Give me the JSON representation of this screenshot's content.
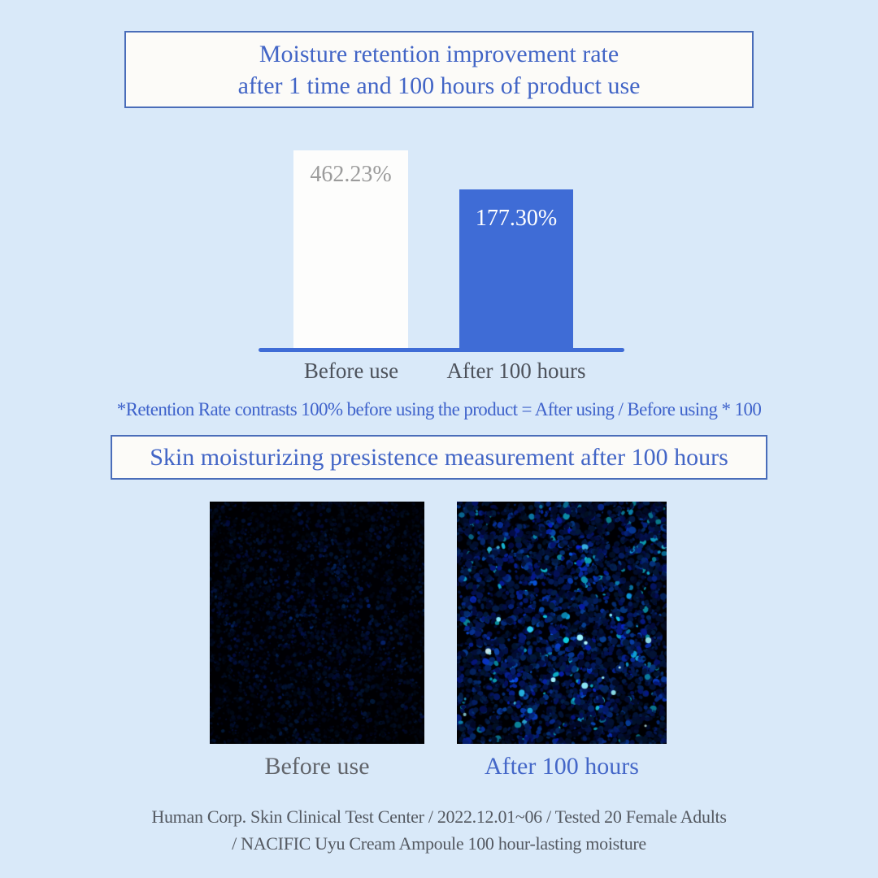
{
  "colors": {
    "background": "#d9e9f9",
    "accent_blue": "#3f6cd6",
    "title_blue": "#4265c6",
    "border_blue": "#4a6db9",
    "box_fill": "#fcfbf8",
    "value_gray": "#9b9b9b",
    "label_gray": "#4d525b",
    "caption_gray": "#62656b",
    "caption_blue": "#4467c8",
    "footer_gray": "#545961",
    "white_bar": "#fdfdfc"
  },
  "header": {
    "line1": "Moisture retention improvement rate",
    "line2": "after 1 time and 100 hours of product use"
  },
  "chart_data": {
    "type": "bar",
    "title": "Moisture retention improvement rate after 1 time and 100 hours of product use",
    "categories": [
      "Before use",
      "After 100 hours"
    ],
    "values": [
      462.23,
      177.3
    ],
    "value_labels": [
      "462.23%",
      "177.30%"
    ],
    "bar_colors": [
      "#fdfdfc",
      "#3f6cd6"
    ],
    "value_label_colors": [
      "#9b9b9b",
      "#ffffff"
    ],
    "xlabel": "",
    "ylabel": "",
    "grid": false,
    "legend": false,
    "footnote": "*Retention Rate contrasts 100% before using the product = After using / Before using * 100"
  },
  "section2": {
    "title": "Skin moisturizing presistence measurement after 100 hours"
  },
  "microscopy": {
    "before": {
      "label": "Before use",
      "style": "dim-blue-fluorescence"
    },
    "after": {
      "label": "After 100 hours",
      "style": "bright-blue-fluorescence"
    }
  },
  "footer": {
    "line1": "Human Corp. Skin Clinical Test Center / 2022.12.01~06 / Tested 20 Female Adults",
    "line2": "/ NACIFIC Uyu Cream Ampoule 100 hour-lasting moisture"
  }
}
